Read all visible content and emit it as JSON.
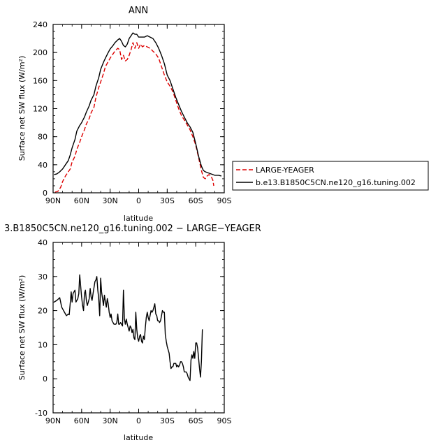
{
  "chart_data": [
    {
      "type": "line",
      "title": "ANN",
      "xlabel": "latitude",
      "ylabel": "Surface net SW flux (W/m²)",
      "xlim": [
        90,
        -90
      ],
      "ylim": [
        0,
        240
      ],
      "xticks": [
        90,
        60,
        30,
        0,
        -30,
        -60,
        -90
      ],
      "xtick_labels": [
        "90N",
        "60N",
        "30N",
        "0",
        "30S",
        "60S",
        "90S"
      ],
      "yticks": [
        0,
        40,
        80,
        120,
        160,
        200,
        240
      ],
      "legend": "outside-right",
      "series": [
        {
          "name": "LARGE-YEAGER",
          "color": "#dd0000",
          "dash": "dashed",
          "points": [
            [
              88,
              1
            ],
            [
              85,
              2
            ],
            [
              82,
              8
            ],
            [
              80,
              16
            ],
            [
              77,
              24
            ],
            [
              74,
              30
            ],
            [
              72,
              34
            ],
            [
              70,
              44
            ],
            [
              67,
              52
            ],
            [
              65,
              62
            ],
            [
              62,
              72
            ],
            [
              60,
              80
            ],
            [
              57,
              90
            ],
            [
              55,
              98
            ],
            [
              52,
              106
            ],
            [
              50,
              114
            ],
            [
              47,
              122
            ],
            [
              45,
              136
            ],
            [
              42,
              150
            ],
            [
              40,
              158
            ],
            [
              37,
              170
            ],
            [
              35,
              180
            ],
            [
              32,
              187
            ],
            [
              30,
              192
            ],
            [
              27,
              198
            ],
            [
              25,
              202
            ],
            [
              22,
              206
            ],
            [
              20,
              204
            ],
            [
              18,
              190
            ],
            [
              16,
              196
            ],
            [
              14,
              188
            ],
            [
              12,
              190
            ],
            [
              10,
              196
            ],
            [
              8,
              204
            ],
            [
              6,
              214
            ],
            [
              4,
              206
            ],
            [
              2,
              214
            ],
            [
              0,
              206
            ],
            [
              -2,
              212
            ],
            [
              -4,
              208
            ],
            [
              -6,
              210
            ],
            [
              -9,
              208
            ],
            [
              -12,
              206
            ],
            [
              -15,
              202
            ],
            [
              -18,
              198
            ],
            [
              -21,
              192
            ],
            [
              -24,
              180
            ],
            [
              -27,
              168
            ],
            [
              -30,
              158
            ],
            [
              -33,
              152
            ],
            [
              -36,
              144
            ],
            [
              -39,
              132
            ],
            [
              -42,
              120
            ],
            [
              -45,
              110
            ],
            [
              -48,
              104
            ],
            [
              -51,
              97
            ],
            [
              -54,
              90
            ],
            [
              -57,
              80
            ],
            [
              -60,
              68
            ],
            [
              -63,
              50
            ],
            [
              -66,
              32
            ],
            [
              -68,
              22
            ],
            [
              -70,
              20
            ],
            [
              -72,
              24
            ],
            [
              -74,
              26
            ],
            [
              -76,
              24
            ],
            [
              -78,
              18
            ],
            [
              -79,
              10
            ]
          ]
        },
        {
          "name": "b.e13.B1850C5CN.ne120_g16.tuning.002",
          "color": "#000000",
          "dash": "solid",
          "points": [
            [
              89,
              26
            ],
            [
              86,
              27
            ],
            [
              83,
              30
            ],
            [
              80,
              34
            ],
            [
              77,
              40
            ],
            [
              74,
              46
            ],
            [
              72,
              54
            ],
            [
              70,
              64
            ],
            [
              67,
              76
            ],
            [
              65,
              88
            ],
            [
              62,
              96
            ],
            [
              60,
              100
            ],
            [
              57,
              108
            ],
            [
              55,
              115
            ],
            [
              52,
              124
            ],
            [
              50,
              132
            ],
            [
              47,
              140
            ],
            [
              45,
              152
            ],
            [
              42,
              164
            ],
            [
              40,
              176
            ],
            [
              37,
              186
            ],
            [
              35,
              192
            ],
            [
              32,
              200
            ],
            [
              30,
              205
            ],
            [
              27,
              210
            ],
            [
              25,
              214
            ],
            [
              22,
              218
            ],
            [
              20,
              220
            ],
            [
              18,
              216
            ],
            [
              16,
              210
            ],
            [
              14,
              208
            ],
            [
              12,
              212
            ],
            [
              10,
              220
            ],
            [
              8,
              224
            ],
            [
              6,
              228
            ],
            [
              4,
              226
            ],
            [
              2,
              226
            ],
            [
              0,
              222
            ],
            [
              -3,
              222
            ],
            [
              -6,
              222
            ],
            [
              -9,
              224
            ],
            [
              -12,
              222
            ],
            [
              -15,
              220
            ],
            [
              -18,
              214
            ],
            [
              -21,
              206
            ],
            [
              -24,
              196
            ],
            [
              -27,
              184
            ],
            [
              -30,
              168
            ],
            [
              -33,
              160
            ],
            [
              -36,
              148
            ],
            [
              -39,
              136
            ],
            [
              -42,
              126
            ],
            [
              -45,
              116
            ],
            [
              -48,
              108
            ],
            [
              -51,
              100
            ],
            [
              -54,
              94
            ],
            [
              -57,
              86
            ],
            [
              -60,
              70
            ],
            [
              -63,
              52
            ],
            [
              -66,
              38
            ],
            [
              -68,
              32
            ],
            [
              -70,
              30
            ],
            [
              -72,
              29
            ],
            [
              -74,
              28
            ],
            [
              -76,
              27
            ],
            [
              -78,
              26
            ],
            [
              -80,
              25
            ],
            [
              -84,
              25
            ],
            [
              -87,
              24
            ]
          ]
        }
      ]
    },
    {
      "type": "line",
      "title": "3.B1850C5CN.ne120_g16.tuning.002 − LARGE−YEAGER",
      "xlabel": "latitude",
      "ylabel": "Surface net SW flux (W/m²)",
      "xlim": [
        90,
        -90
      ],
      "ylim": [
        -10,
        40
      ],
      "xticks": [
        90,
        60,
        30,
        0,
        -30,
        -60,
        -90
      ],
      "xtick_labels": [
        "90N",
        "60N",
        "30N",
        "0",
        "30S",
        "60S",
        "90S"
      ],
      "yticks": [
        -10,
        0,
        10,
        20,
        30,
        40
      ],
      "series": [
        {
          "color": "#000000",
          "dash": "solid",
          "points": [
            [
              89,
              22.5
            ],
            [
              86,
              23
            ],
            [
              83,
              23.8
            ],
            [
              81,
              21
            ],
            [
              78,
              19.5
            ],
            [
              76,
              18.5
            ],
            [
              74,
              19
            ],
            [
              73,
              18.8
            ],
            [
              71,
              25.5
            ],
            [
              70,
              22.5
            ],
            [
              69,
              25
            ],
            [
              67,
              26
            ],
            [
              66,
              22.5
            ],
            [
              64,
              23.5
            ],
            [
              63,
              25
            ],
            [
              62,
              30.5
            ],
            [
              60,
              24
            ],
            [
              59,
              21.5
            ],
            [
              58,
              20
            ],
            [
              57,
              25
            ],
            [
              56,
              26
            ],
            [
              55,
              23
            ],
            [
              54,
              21.5
            ],
            [
              53,
              22.5
            ],
            [
              52,
              23.5
            ],
            [
              51,
              26.5
            ],
            [
              50,
              24
            ],
            [
              49,
              23
            ],
            [
              48,
              25
            ],
            [
              46,
              28.5
            ],
            [
              45,
              29
            ],
            [
              44,
              30
            ],
            [
              43,
              26
            ],
            [
              42,
              23.5
            ],
            [
              41,
              18.5
            ],
            [
              40,
              29.5
            ],
            [
              39,
              25.5
            ],
            [
              38,
              23.5
            ],
            [
              37,
              21.5
            ],
            [
              36,
              24.5
            ],
            [
              35,
              22.5
            ],
            [
              34,
              21
            ],
            [
              33,
              23.5
            ],
            [
              32,
              22
            ],
            [
              31,
              19.5
            ],
            [
              30,
              18
            ],
            [
              29,
              19
            ],
            [
              28,
              17
            ],
            [
              27,
              16.5
            ],
            [
              26,
              16
            ],
            [
              24,
              16
            ],
            [
              23,
              16.5
            ],
            [
              22,
              19
            ],
            [
              21,
              16
            ],
            [
              20,
              16
            ],
            [
              19,
              16.5
            ],
            [
              18,
              16
            ],
            [
              17,
              15.5
            ],
            [
              16,
              26
            ],
            [
              15,
              17.5
            ],
            [
              14,
              16
            ],
            [
              13,
              17.5
            ],
            [
              12,
              16
            ],
            [
              11,
              15
            ],
            [
              10,
              14
            ],
            [
              9,
              15.5
            ],
            [
              8,
              15
            ],
            [
              7,
              13.5
            ],
            [
              6,
              14.5
            ],
            [
              5,
              12
            ],
            [
              4,
              11.5
            ],
            [
              3,
              19.5
            ],
            [
              2,
              14.5
            ],
            [
              1,
              12
            ],
            [
              0,
              11
            ],
            [
              -1,
              12.5
            ],
            [
              -2,
              13
            ],
            [
              -3,
              11
            ],
            [
              -4,
              10.5
            ],
            [
              -5,
              12.5
            ],
            [
              -6,
              11.5
            ],
            [
              -7,
              15
            ],
            [
              -8,
              18
            ],
            [
              -9,
              19.5
            ],
            [
              -10,
              18
            ],
            [
              -11,
              17
            ],
            [
              -12,
              18.5
            ],
            [
              -13,
              20
            ],
            [
              -14,
              19.5
            ],
            [
              -15,
              20
            ],
            [
              -16,
              21
            ],
            [
              -17,
              22
            ],
            [
              -18,
              19
            ],
            [
              -19,
              18.5
            ],
            [
              -20,
              17
            ],
            [
              -21,
              17
            ],
            [
              -22,
              16.5
            ],
            [
              -23,
              17
            ],
            [
              -24,
              18.5
            ],
            [
              -25,
              20
            ],
            [
              -26,
              19.5
            ],
            [
              -27,
              19.5
            ],
            [
              -28,
              13
            ],
            [
              -29,
              11
            ],
            [
              -30,
              9.5
            ],
            [
              -31,
              8.5
            ],
            [
              -32,
              7.5
            ],
            [
              -33,
              5
            ],
            [
              -34,
              3
            ],
            [
              -35,
              3.5
            ],
            [
              -36,
              3.5
            ],
            [
              -37,
              4.5
            ],
            [
              -38,
              4.5
            ],
            [
              -39,
              4.5
            ],
            [
              -40,
              3.5
            ],
            [
              -41,
              4
            ],
            [
              -42,
              3.5
            ],
            [
              -43,
              4
            ],
            [
              -44,
              5
            ],
            [
              -45,
              5
            ],
            [
              -46,
              4.5
            ],
            [
              -47,
              3.5
            ],
            [
              -48,
              2
            ],
            [
              -49,
              2
            ],
            [
              -50,
              2
            ],
            [
              -51,
              1.5
            ],
            [
              -52,
              0.5
            ],
            [
              -53,
              0
            ],
            [
              -54,
              -0.5
            ],
            [
              -55,
              5.5
            ],
            [
              -56,
              7
            ],
            [
              -57,
              6
            ],
            [
              -58,
              8
            ],
            [
              -59,
              6
            ],
            [
              -60,
              10.5
            ],
            [
              -61,
              10.5
            ],
            [
              -62,
              9
            ],
            [
              -63,
              6
            ],
            [
              -64,
              3
            ],
            [
              -65,
              0.5
            ],
            [
              -66,
              5
            ],
            [
              -67,
              14.5
            ]
          ]
        }
      ]
    }
  ]
}
